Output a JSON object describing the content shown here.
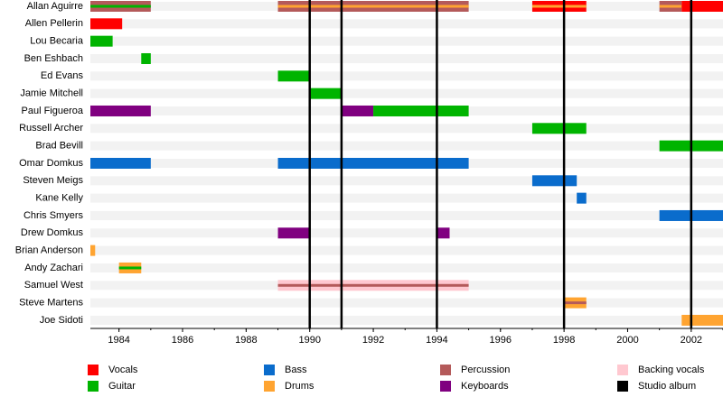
{
  "chart_data": {
    "type": "timeline",
    "xlim": [
      1983.1,
      2003
    ],
    "xticks": [
      1984,
      1986,
      1988,
      1990,
      1992,
      1994,
      1996,
      1998,
      2000,
      2002
    ],
    "albums": [
      1990,
      1991,
      1994,
      1998,
      2002
    ],
    "legend": [
      {
        "name": "Vocals",
        "color": "#ff0000"
      },
      {
        "name": "Guitar",
        "color": "#00b400"
      },
      {
        "name": "Bass",
        "color": "#0a6ccc"
      },
      {
        "name": "Drums",
        "color": "#ffa431"
      },
      {
        "name": "Percussion",
        "color": "#b45a5a"
      },
      {
        "name": "Keyboards",
        "color": "#800080"
      },
      {
        "name": "Backing vocals",
        "color": "#ffc8d0"
      },
      {
        "name": "Studio album",
        "color": "#000000"
      }
    ],
    "members": [
      {
        "name": "Allan Aguirre",
        "periods": [
          {
            "start": 1983.1,
            "end": 1985,
            "role": "Percussion",
            "stripe": "Guitar"
          },
          {
            "start": 1989,
            "end": 1995,
            "role": "Percussion",
            "stripe": "Drums"
          },
          {
            "start": 1997,
            "end": 1998.7,
            "role": "Vocals",
            "stripe": "Drums"
          },
          {
            "start": 2001,
            "end": 2001.7,
            "role": "Percussion",
            "stripe": "Drums"
          },
          {
            "start": 2001.7,
            "end": 2003,
            "role": "Vocals"
          }
        ]
      },
      {
        "name": "Allen Pellerin",
        "periods": [
          {
            "start": 1983.1,
            "end": 1984.1,
            "role": "Vocals"
          }
        ]
      },
      {
        "name": "Lou Becaria",
        "periods": [
          {
            "start": 1983.1,
            "end": 1983.8,
            "role": "Guitar"
          }
        ]
      },
      {
        "name": "Ben Eshbach",
        "periods": [
          {
            "start": 1984.7,
            "end": 1985,
            "role": "Guitar"
          }
        ]
      },
      {
        "name": "Ed Evans",
        "periods": [
          {
            "start": 1989,
            "end": 1990,
            "role": "Guitar"
          }
        ]
      },
      {
        "name": "Jamie Mitchell",
        "periods": [
          {
            "start": 1990,
            "end": 1991,
            "role": "Guitar"
          }
        ]
      },
      {
        "name": "Paul Figueroa",
        "periods": [
          {
            "start": 1983.1,
            "end": 1985,
            "role": "Keyboards"
          },
          {
            "start": 1991,
            "end": 1992,
            "role": "Keyboards"
          },
          {
            "start": 1992,
            "end": 1995,
            "role": "Guitar"
          }
        ]
      },
      {
        "name": "Russell Archer",
        "periods": [
          {
            "start": 1997,
            "end": 1998.7,
            "role": "Guitar"
          }
        ]
      },
      {
        "name": "Brad Bevill",
        "periods": [
          {
            "start": 2001,
            "end": 2003,
            "role": "Guitar"
          }
        ]
      },
      {
        "name": "Omar Domkus",
        "periods": [
          {
            "start": 1983.1,
            "end": 1985,
            "role": "Bass"
          },
          {
            "start": 1989,
            "end": 1995,
            "role": "Bass"
          }
        ]
      },
      {
        "name": "Steven Meigs",
        "periods": [
          {
            "start": 1997,
            "end": 1998.4,
            "role": "Bass"
          }
        ]
      },
      {
        "name": "Kane Kelly",
        "periods": [
          {
            "start": 1998.4,
            "end": 1998.7,
            "role": "Bass"
          }
        ]
      },
      {
        "name": "Chris Smyers",
        "periods": [
          {
            "start": 2001,
            "end": 2003,
            "role": "Bass"
          }
        ]
      },
      {
        "name": "Drew Domkus",
        "periods": [
          {
            "start": 1989,
            "end": 1990,
            "role": "Keyboards"
          },
          {
            "start": 1994,
            "end": 1994.4,
            "role": "Keyboards"
          }
        ]
      },
      {
        "name": "Brian Anderson",
        "periods": [
          {
            "start": 1983.1,
            "end": 1983.25,
            "role": "Drums"
          }
        ]
      },
      {
        "name": "Andy Zachari",
        "periods": [
          {
            "start": 1984,
            "end": 1984.7,
            "role": "Drums",
            "stripe": "Guitar"
          }
        ]
      },
      {
        "name": "Samuel West",
        "periods": [
          {
            "start": 1989,
            "end": 1995,
            "role": "Backing vocals",
            "stripe": "Percussion"
          }
        ]
      },
      {
        "name": "Steve Martens",
        "periods": [
          {
            "start": 1998,
            "end": 1998.7,
            "role": "Drums",
            "stripe": "Percussion"
          }
        ]
      },
      {
        "name": "Joe Sidoti",
        "periods": [
          {
            "start": 2001.7,
            "end": 2003,
            "role": "Drums"
          }
        ]
      }
    ]
  }
}
